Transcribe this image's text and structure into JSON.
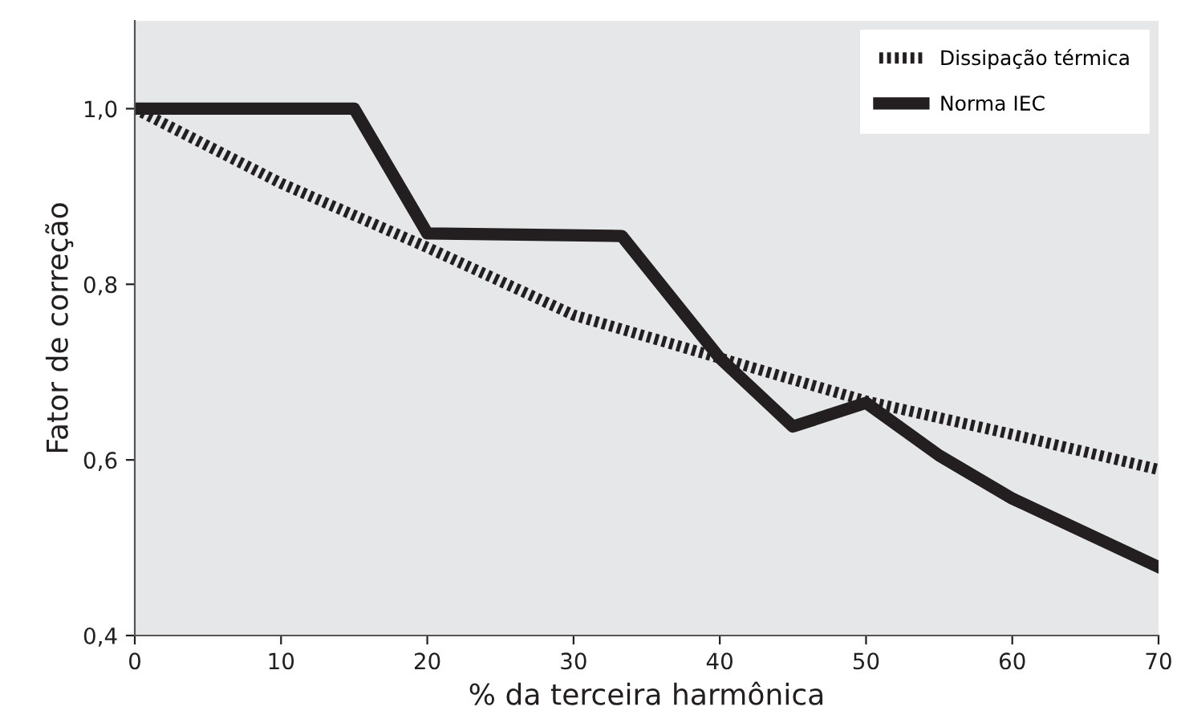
{
  "chart_data": {
    "type": "line",
    "xlabel": "% da terceira harmônica",
    "ylabel": "Fator de correção",
    "xlim": [
      0,
      70
    ],
    "xticks": [
      0,
      10,
      20,
      30,
      40,
      50,
      60,
      70
    ],
    "ylim": [
      0.4,
      1.1
    ],
    "yticks": [
      {
        "value": 0.4,
        "label": "0,4"
      },
      {
        "value": 0.6,
        "label": "0,6"
      },
      {
        "value": 0.8,
        "label": "0,8"
      },
      {
        "value": 1.0,
        "label": "1,0"
      }
    ],
    "grid": false,
    "legend": "top right",
    "marker": "none",
    "series": [
      {
        "name": "Dissipação térmica",
        "color": "#231f20",
        "line_style": "dotted",
        "x": [
          0,
          10,
          20,
          30,
          40,
          50,
          60,
          70
        ],
        "values": [
          1.0,
          0.915,
          0.842,
          0.765,
          0.716,
          0.667,
          0.629,
          0.589
        ]
      },
      {
        "name": "Norma IEC",
        "color": "#231f20",
        "line_style": "solid",
        "x": [
          0,
          15,
          20,
          33.3,
          40,
          45,
          50,
          55,
          60,
          70
        ],
        "values": [
          1.0,
          1.0,
          0.858,
          0.855,
          0.716,
          0.638,
          0.665,
          0.605,
          0.556,
          0.478
        ]
      }
    ]
  }
}
